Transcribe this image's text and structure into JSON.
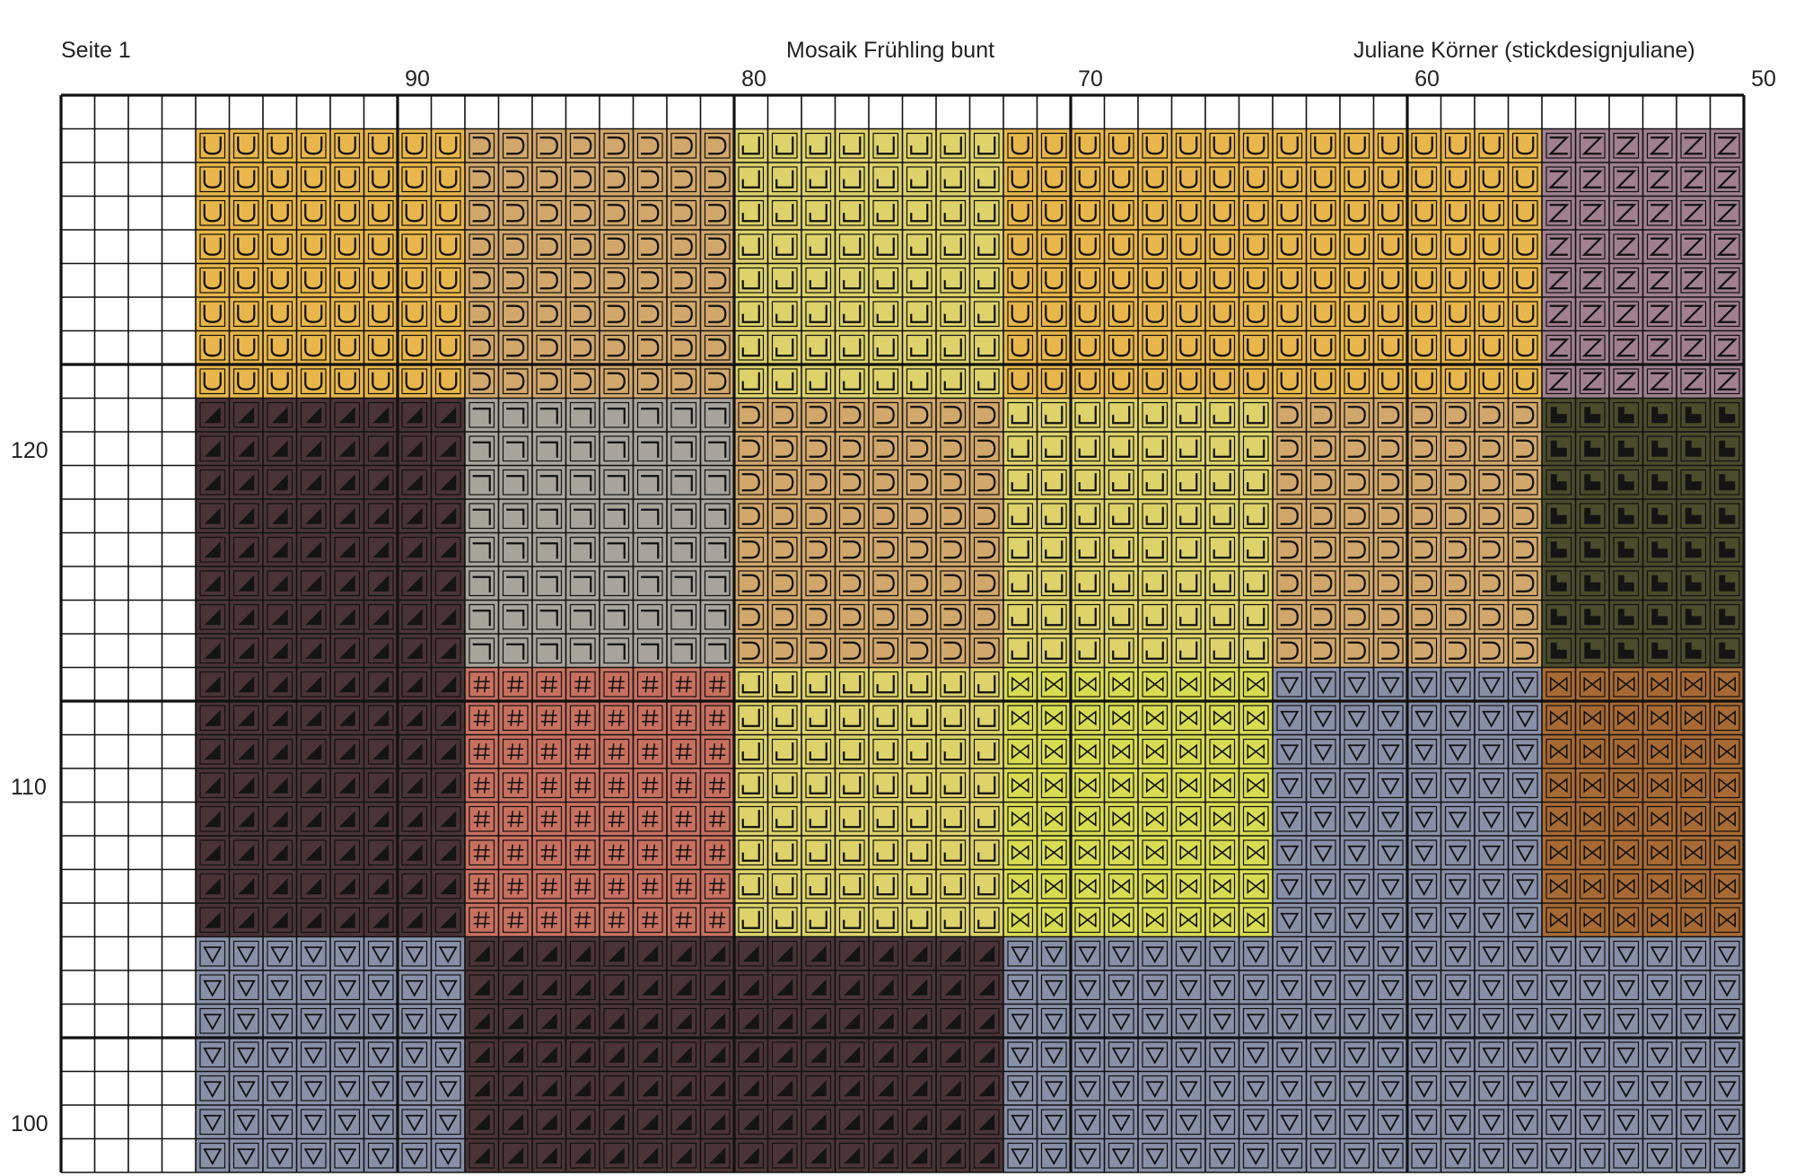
{
  "header": {
    "page": "Seite 1",
    "title": "Mosaik Frühling bunt",
    "author": "Juliane Körner (stickdesignjuliane)"
  },
  "column_numbers": [
    "90",
    "80",
    "70",
    "60",
    "50"
  ],
  "row_numbers": [
    "120",
    "110",
    "100"
  ],
  "grid": {
    "columns": 50,
    "rows": 32,
    "first_column_number": 99,
    "first_row_number": 127
  },
  "threads": {
    "U": {
      "symbol": "U",
      "color": "#e8b64a"
    },
    "C": {
      "symbol": "C",
      "color": "#d1a76b"
    },
    "J": {
      "symbol": "J",
      "color": "#ddd36a"
    },
    "Z": {
      "symbol": "Z",
      "color": "#a08090"
    },
    "TRI": {
      "symbol": "triangle",
      "color": "#4a3438"
    },
    "NOT": {
      "symbol": "¬",
      "color": "#a8a49c"
    },
    "SQL": {
      "symbol": "L-block",
      "color": "#4a4c2c"
    },
    "HASH": {
      "symbol": "#",
      "color": "#c87060"
    },
    "BOW": {
      "symbol": "bowtie",
      "color": "#d8dc52"
    },
    "DN": {
      "symbol": "∇",
      "color": "#8890a8"
    },
    "BOWB": {
      "symbol": "bowtie",
      "color": "#a86a34"
    }
  },
  "blocks": [
    {
      "cols": [
        5,
        12
      ],
      "rows": [
        2,
        9
      ],
      "thread": "U"
    },
    {
      "cols": [
        13,
        20
      ],
      "rows": [
        2,
        9
      ],
      "thread": "C"
    },
    {
      "cols": [
        21,
        28
      ],
      "rows": [
        2,
        9
      ],
      "thread": "J"
    },
    {
      "cols": [
        29,
        44
      ],
      "rows": [
        2,
        9
      ],
      "thread": "U"
    },
    {
      "cols": [
        45,
        50
      ],
      "rows": [
        2,
        9
      ],
      "thread": "Z"
    },
    {
      "cols": [
        5,
        12
      ],
      "rows": [
        10,
        25
      ],
      "thread": "TRI"
    },
    {
      "cols": [
        13,
        20
      ],
      "rows": [
        10,
        17
      ],
      "thread": "NOT"
    },
    {
      "cols": [
        21,
        28
      ],
      "rows": [
        10,
        17
      ],
      "thread": "C"
    },
    {
      "cols": [
        29,
        36
      ],
      "rows": [
        10,
        17
      ],
      "thread": "J"
    },
    {
      "cols": [
        37,
        44
      ],
      "rows": [
        10,
        17
      ],
      "thread": "C"
    },
    {
      "cols": [
        45,
        50
      ],
      "rows": [
        10,
        17
      ],
      "thread": "SQL"
    },
    {
      "cols": [
        13,
        20
      ],
      "rows": [
        18,
        25
      ],
      "thread": "HASH"
    },
    {
      "cols": [
        21,
        28
      ],
      "rows": [
        18,
        25
      ],
      "thread": "J"
    },
    {
      "cols": [
        29,
        36
      ],
      "rows": [
        18,
        25
      ],
      "thread": "BOW"
    },
    {
      "cols": [
        37,
        44
      ],
      "rows": [
        18,
        25
      ],
      "thread": "DN"
    },
    {
      "cols": [
        45,
        50
      ],
      "rows": [
        18,
        25
      ],
      "thread": "BOWB"
    },
    {
      "cols": [
        5,
        12
      ],
      "rows": [
        26,
        32
      ],
      "thread": "DN"
    },
    {
      "cols": [
        13,
        28
      ],
      "rows": [
        26,
        32
      ],
      "thread": "TRI"
    },
    {
      "cols": [
        29,
        50
      ],
      "rows": [
        26,
        32
      ],
      "thread": "DN"
    }
  ]
}
